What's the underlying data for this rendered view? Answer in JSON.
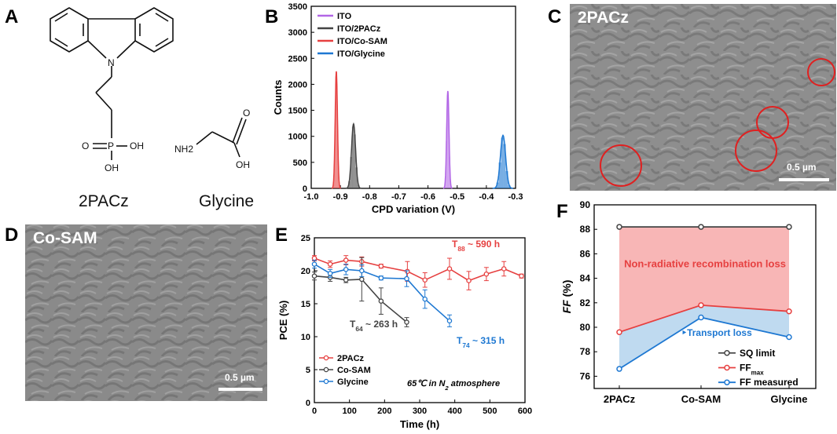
{
  "panels": {
    "A": {
      "letter": "A",
      "molecules": [
        {
          "name": "2PACz",
          "atoms": {
            "n": "N",
            "p": "P",
            "o": "O",
            "oh1": "OH",
            "oh2": "OH"
          }
        },
        {
          "name": "Glycine",
          "atoms": {
            "nh2": "NH2",
            "o": "O",
            "oh": "OH"
          }
        }
      ]
    },
    "C": {
      "letter": "C",
      "label": "2PACz",
      "scale": "0.5 µm"
    },
    "D": {
      "letter": "D",
      "label": "Co-SAM",
      "scale": "0.5 µm"
    }
  },
  "colors": {
    "ito": "#b266e6",
    "pacz": "#444444",
    "cosam": "#e64040",
    "glycine": "#1e78d2",
    "sq": "#444444",
    "ffmax": "#e64040",
    "ffmeas": "#1e78d2"
  },
  "chart_data": [
    {
      "letter": "B",
      "type": "histogram",
      "xlabel": "CPD variation (V)",
      "ylabel": "Counts",
      "xlim": [
        -1.0,
        -0.3
      ],
      "ylim": [
        0,
        3500
      ],
      "xticks": [
        "-1.0",
        "-0.9",
        "-0.8",
        "-0.7",
        "-0.6",
        "-0.5",
        "-0.4",
        "-0.3"
      ],
      "yticks": [
        "0",
        "500",
        "1000",
        "1500",
        "2000",
        "2500",
        "3000",
        "3500"
      ],
      "legend": [
        "ITO",
        "ITO/2PACz",
        "ITO/Co-SAM",
        "ITO/Glycine"
      ],
      "series": [
        {
          "name": "ITO",
          "color_key": "ito",
          "center": -0.532,
          "peak": 1870,
          "sigma": 0.004
        },
        {
          "name": "ITO/2PACz",
          "color_key": "pacz",
          "center": -0.855,
          "peak": 1240,
          "sigma": 0.007
        },
        {
          "name": "ITO/Co-SAM",
          "color_key": "cosam",
          "center": -0.914,
          "peak": 2250,
          "sigma": 0.004
        },
        {
          "name": "ITO/Glycine",
          "color_key": "glycine",
          "center": -0.343,
          "peak": 1020,
          "sigma": 0.009
        }
      ]
    },
    {
      "letter": "E",
      "type": "line",
      "xlabel": "Time (h)",
      "ylabel": "PCE (%)",
      "xlim": [
        0,
        600
      ],
      "ylim": [
        0,
        25
      ],
      "xticks": [
        "0",
        "100",
        "200",
        "300",
        "400",
        "500",
        "600"
      ],
      "yticks": [
        "0",
        "5",
        "10",
        "15",
        "20",
        "25"
      ],
      "legend": [
        "2PACz",
        "Co-SAM",
        "Glycine"
      ],
      "note": "65℃ in N",
      "note_sub": "2",
      "note_tail": " atmosphere",
      "annotations": [
        {
          "text": "T",
          "sub": "88",
          "tail": " ~ 590 h",
          "color_key": "ffmax"
        },
        {
          "text": "T",
          "sub": "64",
          "tail": " ~ 263 h",
          "color_key": "pacz"
        },
        {
          "text": "T",
          "sub": "74",
          "tail": " ~ 315 h",
          "color_key": "glycine"
        }
      ],
      "series": [
        {
          "name": "2PACz",
          "color_key": "cosam",
          "x": [
            0,
            45,
            90,
            135,
            190,
            265,
            315,
            385,
            440,
            490,
            540,
            590
          ],
          "y": [
            21.9,
            21.0,
            21.6,
            21.4,
            20.7,
            19.9,
            18.6,
            20.3,
            18.5,
            19.5,
            20.3,
            19.2
          ],
          "err": [
            0.4,
            0.5,
            0.7,
            0.7,
            0.3,
            1.5,
            1.1,
            1.6,
            1.4,
            1.0,
            1.1,
            0.3
          ]
        },
        {
          "name": "Co-SAM",
          "color_key": "pacz",
          "x": [
            0,
            45,
            90,
            135,
            190,
            263
          ],
          "y": [
            19.2,
            19.0,
            18.6,
            18.7,
            15.4,
            12.2
          ],
          "err": [
            0.6,
            0.6,
            0.4,
            3.3,
            2.0,
            0.7
          ]
        },
        {
          "name": "Glycine",
          "color_key": "glycine",
          "x": [
            0,
            45,
            90,
            135,
            190,
            263,
            315,
            385
          ],
          "y": [
            21.0,
            19.6,
            20.2,
            20.0,
            18.9,
            18.8,
            15.7,
            12.4
          ],
          "err": [
            0.6,
            0.6,
            0.8,
            0.9,
            0.3,
            1.2,
            1.4,
            0.9
          ]
        }
      ]
    },
    {
      "letter": "F",
      "type": "line",
      "xlabel": "",
      "ylabel": "FF",
      "ylabel_tail": " (%)",
      "categories": [
        "2PACz",
        "Co-SAM",
        "Glycine"
      ],
      "ylim": [
        75,
        90
      ],
      "yticks": [
        "76",
        "78",
        "80",
        "82",
        "84",
        "86",
        "88",
        "90"
      ],
      "legend": [
        "SQ limit",
        "FF",
        "FF measured"
      ],
      "legend_sub": "max",
      "region_labels": [
        "Non-radiative recombination loss",
        "Transport loss"
      ],
      "series": [
        {
          "name": "SQ limit",
          "color_key": "sq",
          "values": [
            88.2,
            88.2,
            88.2
          ]
        },
        {
          "name": "FFmax",
          "color_key": "ffmax",
          "values": [
            79.6,
            81.8,
            81.3
          ]
        },
        {
          "name": "FF measured",
          "color_key": "ffmeas",
          "values": [
            76.6,
            80.8,
            79.2
          ]
        }
      ]
    }
  ]
}
